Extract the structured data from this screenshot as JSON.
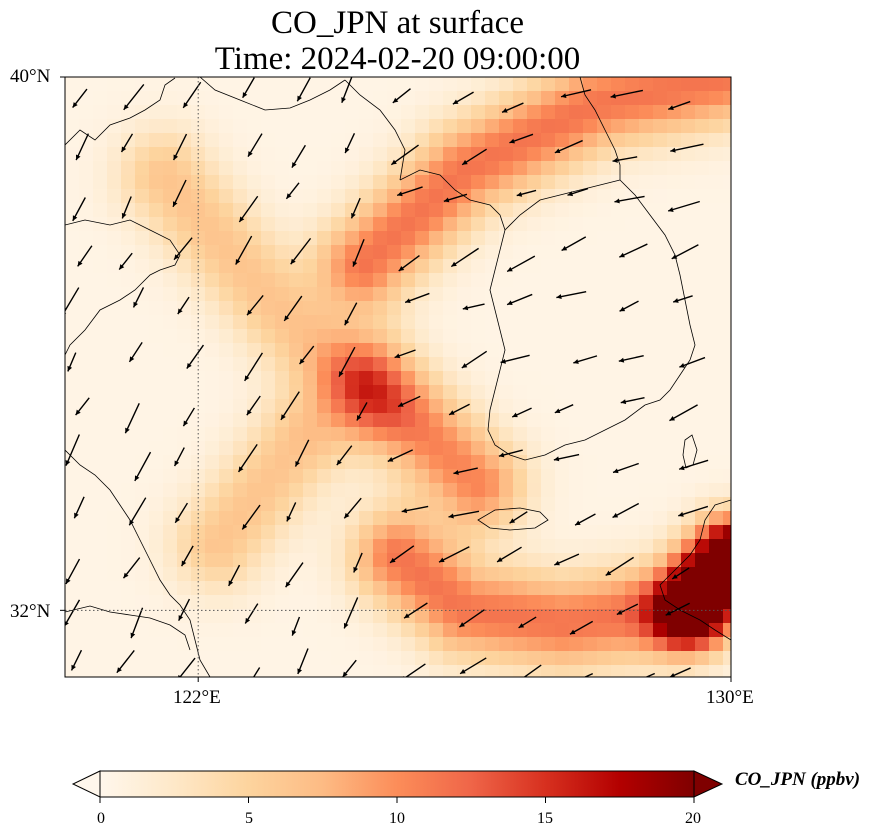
{
  "title": {
    "line1": "CO_JPN at surface",
    "line2": "Time: 2024-02-20 09:00:00"
  },
  "map": {
    "lon_range": [
      120,
      130
    ],
    "lat_range": [
      31,
      40
    ],
    "lat_labels": [
      {
        "value": 40,
        "text": "40°N"
      },
      {
        "value": 32,
        "text": "32°N"
      }
    ],
    "lon_labels": [
      {
        "value": 122,
        "text": "122°E"
      },
      {
        "value": 130,
        "text": "130°E"
      }
    ],
    "gridlines": {
      "lat": [
        32
      ],
      "lon": [
        122
      ],
      "style": "dotted"
    },
    "field": {
      "variable": "CO_JPN",
      "units": "ppbv",
      "background_value": 0.5,
      "plumes": [
        {
          "name": "north-band",
          "path": [
            [
              124.5,
              37.2
            ],
            [
              126.0,
              38.6
            ],
            [
              128.0,
              39.6
            ],
            [
              130.0,
              40.0
            ]
          ],
          "peak": 11
        },
        {
          "name": "northwest-diagonal",
          "path": [
            [
              121.5,
              38.5
            ],
            [
              123.2,
              36.5
            ],
            [
              124.5,
              35.2
            ]
          ],
          "peak": 6
        },
        {
          "name": "central-blob",
          "path": [
            [
              124.6,
              35.4
            ],
            [
              126.2,
              33.9
            ]
          ],
          "peak": 10
        },
        {
          "name": "west-plume",
          "path": [
            [
              123.5,
              34.5
            ],
            [
              122.3,
              33.0
            ]
          ],
          "peak": 6
        },
        {
          "name": "southern-arc",
          "path": [
            [
              125.0,
              32.8
            ],
            [
              126.0,
              32.0
            ],
            [
              127.5,
              31.8
            ],
            [
              129.0,
              32.0
            ],
            [
              130.0,
              32.5
            ]
          ],
          "peak": 11
        },
        {
          "name": "southeast-hotspot",
          "path": [
            [
              129.4,
              32.0
            ],
            [
              130.0,
              32.8
            ]
          ],
          "peak": 22
        }
      ]
    },
    "coastline_color": "#000000",
    "wind_arrow_color": "#000000"
  },
  "colorbar": {
    "min": 0,
    "max": 20,
    "ticks": [
      "0",
      "5",
      "10",
      "15",
      "20"
    ],
    "label": "CO_JPN (ppbv)",
    "colormap": "OrRd",
    "stops": [
      "#fff7ec",
      "#fee8c8",
      "#fdd49e",
      "#fdbb84",
      "#fc8d59",
      "#ef6548",
      "#d7301f",
      "#b30000",
      "#7f0000"
    ]
  }
}
